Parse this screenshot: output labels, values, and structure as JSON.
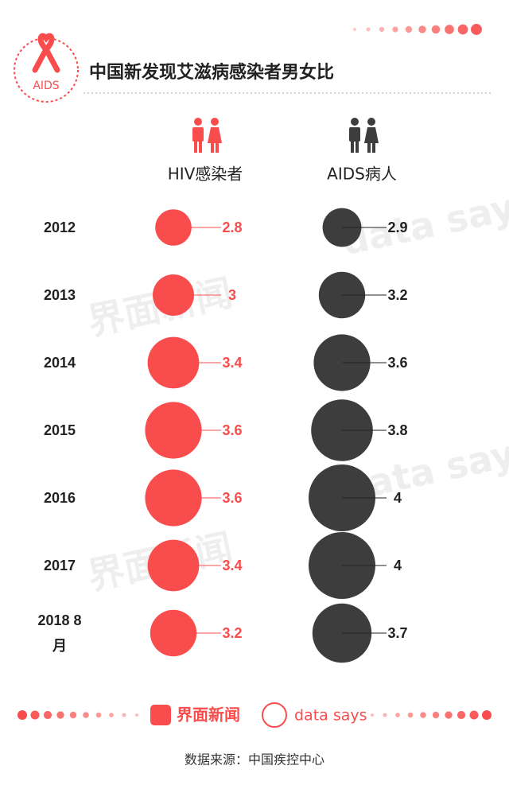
{
  "chart_data": {
    "type": "bubble",
    "title": "中国新发现艾滋病感染者男女比",
    "logo_text": "AIDS",
    "categories": [
      "2012",
      "2013",
      "2014",
      "2015",
      "2016",
      "2017",
      "2018 8月"
    ],
    "series": [
      {
        "name": "HIV感染者",
        "color": "#f94d4d",
        "values": [
          2.8,
          3,
          3.4,
          3.6,
          3.6,
          3.4,
          3.2
        ]
      },
      {
        "name": "AIDS病人",
        "color": "#3d3d3d",
        "values": [
          2.9,
          3.2,
          3.6,
          3.8,
          4,
          4,
          3.7
        ]
      }
    ],
    "brands": [
      "界面新闻",
      "data says"
    ],
    "source": "数据来源：中国疾控中心"
  }
}
